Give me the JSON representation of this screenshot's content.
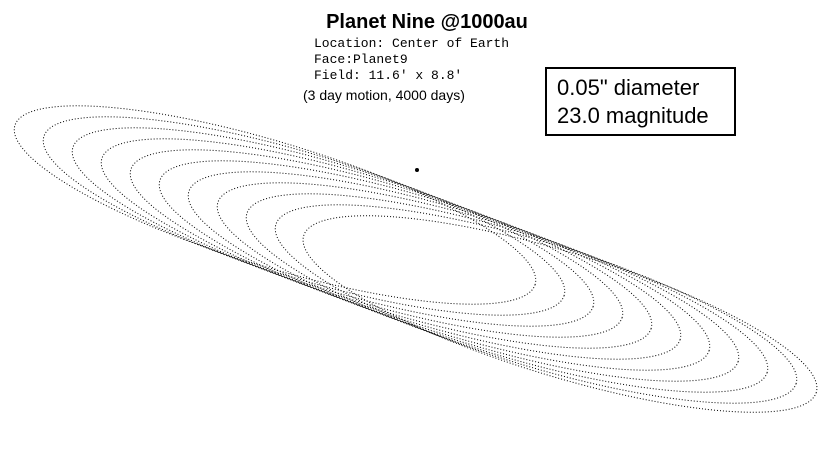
{
  "title": "Planet Nine @1000au",
  "info": {
    "location": "Location: Center of Earth",
    "face": "Face:Planet9",
    "field": "Field: 11.6' x 8.8'",
    "motion": "(3 day motion, 4000 days)"
  },
  "box": {
    "diameter": "0.05\" diameter",
    "magnitude": "23.0 magnitude"
  }
}
